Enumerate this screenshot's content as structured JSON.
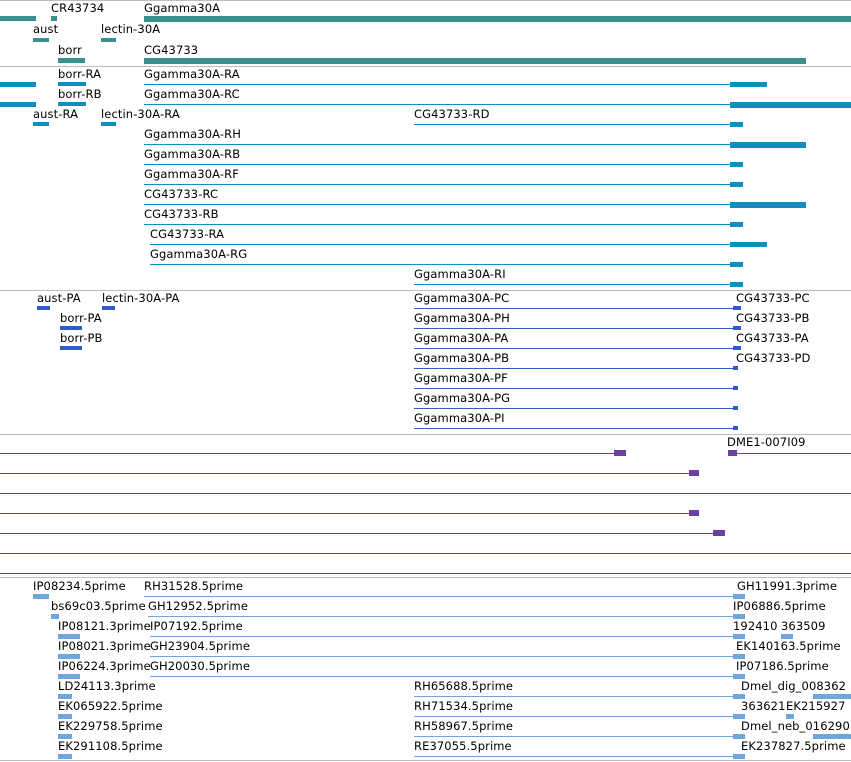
{
  "colors": {
    "gene": "#3a8f8f",
    "transcript": "#0f8fbf",
    "protein": "#2f5cc8",
    "clone": "#6a3fa0",
    "est": "#6fa7dc",
    "separator": "#bdbdbd"
  },
  "genes": {
    "labels": {
      "cr43734": "CR43734",
      "ggamma30a": "Ggamma30A",
      "aust": "aust",
      "lectin30a": "lectin-30A",
      "borr": "borr",
      "cg43733": "CG43733"
    }
  },
  "transcripts": {
    "labels": {
      "borr_ra": "borr-RA",
      "ggamma30a_ra": "Ggamma30A-RA",
      "borr_rb": "borr-RB",
      "ggamma30a_rc": "Ggamma30A-RC",
      "aust_ra": "aust-RA",
      "lectin30a_ra": "lectin-30A-RA",
      "cg43733_rd": "CG43733-RD",
      "ggamma30a_rh": "Ggamma30A-RH",
      "ggamma30a_rb": "Ggamma30A-RB",
      "ggamma30a_rf": "Ggamma30A-RF",
      "cg43733_rc": "CG43733-RC",
      "cg43733_rb": "CG43733-RB",
      "cg43733_ra": "CG43733-RA",
      "ggamma30a_rg": "Ggamma30A-RG",
      "ggamma30a_ri": "Ggamma30A-RI"
    }
  },
  "proteins": {
    "labels": {
      "aust_pa": "aust-PA",
      "lectin30a_pa": "lectin-30A-PA",
      "ggamma30a_pc": "Ggamma30A-PC",
      "cg43733_pc": "CG43733-PC",
      "borr_pa": "borr-PA",
      "ggamma30a_ph": "Ggamma30A-PH",
      "cg43733_pb": "CG43733-PB",
      "borr_pb": "borr-PB",
      "ggamma30a_pa": "Ggamma30A-PA",
      "cg43733_pa": "CG43733-PA",
      "ggamma30a_pb": "Ggamma30A-PB",
      "cg43733_pd": "CG43733-PD",
      "ggamma30a_pf": "Ggamma30A-PF",
      "ggamma30a_pg": "Ggamma30A-PG",
      "ggamma30a_pi": "Ggamma30A-PI"
    }
  },
  "clones": {
    "labels": {
      "dme1": "DME1-007I09"
    }
  },
  "ests": {
    "labels": {
      "ip08234": "IP08234.5prime",
      "rh31528": "RH31528.5prime",
      "gh11991": "GH11991.3prime",
      "bs69c03": "bs69c03.5prime",
      "gh12952": "GH12952.5prime",
      "ip06886": "IP06886.5prime",
      "ip08121": "IP08121.3prime",
      "ip07192": "IP07192.5prime",
      "c192410": "192410",
      "c363509": "363509",
      "ip08021": "IP08021.3prime",
      "gh23904": "GH23904.5prime",
      "ek140163": "EK140163.5prime",
      "ip06224": "IP06224.3prime",
      "gh20030": "GH20030.5prime",
      "ip07186": "IP07186.5prime",
      "ld24113": "LD24113.3prime",
      "rh65688": "RH65688.5prime",
      "dmel_dig": "Dmel_dig_008362",
      "ek065922": "EK065922.5prime",
      "rh71534": "RH71534.5prime",
      "c363621": "363621",
      "ek215927": "EK215927",
      "ek229758": "EK229758.5prime",
      "rh58967": "RH58967.5prime",
      "dmel_neb": "Dmel_neb_016290",
      "ek291108": "EK291108.5prime",
      "re37055": "RE37055.5prime",
      "ek237827": "EK237827.5prime"
    }
  }
}
